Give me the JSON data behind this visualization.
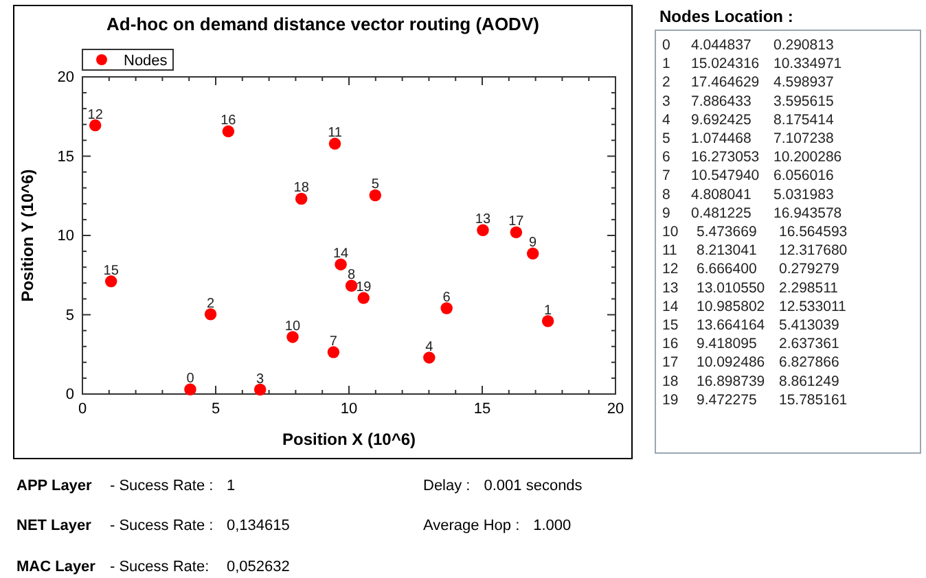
{
  "chart_data": {
    "type": "scatter",
    "title": "Ad-hoc on demand distance vector routing (AODV)",
    "xlabel": "Position X (10^6)",
    "ylabel": "Position Y (10^6)",
    "x": [
      4.044837,
      17.464629,
      4.808041,
      6.6664,
      13.01055,
      10.985802,
      13.664164,
      9.418095,
      10.092486,
      16.898739,
      7.886433,
      9.472275,
      0.481225,
      15.024316,
      9.692425,
      1.074468,
      5.473669,
      16.273053,
      8.213041,
      10.54794
    ],
    "series": [
      {
        "name": "Nodes",
        "color": "#ff0000",
        "values": [
          0.290813,
          4.598937,
          5.031983,
          0.279279,
          2.298511,
          12.533011,
          5.413039,
          2.637361,
          6.827866,
          8.861249,
          3.595615,
          15.785161,
          16.943578,
          10.334971,
          8.175414,
          7.107238,
          16.564593,
          10.200286,
          12.31768,
          6.056016
        ]
      }
    ],
    "xlim": [
      0,
      20
    ],
    "ylim": [
      0,
      20
    ],
    "xticks": [
      0,
      {
        "value": 1,
        "label": null
      },
      {
        "value": 2,
        "label": null
      },
      {
        "value": 3,
        "label": null
      },
      {
        "value": 4,
        "label": null
      },
      5,
      {
        "value": 6,
        "label": null
      },
      {
        "value": 7,
        "label": null
      },
      {
        "value": 8,
        "label": null
      },
      {
        "value": 9,
        "label": null
      },
      10,
      {
        "value": 11,
        "label": null
      },
      {
        "value": 12,
        "label": null
      },
      {
        "value": 13,
        "label": null
      },
      {
        "value": 14,
        "label": null
      },
      15,
      {
        "value": 16,
        "label": null
      },
      {
        "value": 17,
        "label": null
      },
      {
        "value": 18,
        "label": null
      },
      {
        "value": 19,
        "label": null
      },
      20
    ],
    "yticks": [
      0,
      {
        "value": 1,
        "label": null
      },
      {
        "value": 2,
        "label": null
      },
      {
        "value": 3,
        "label": null
      },
      {
        "value": 4,
        "label": null
      },
      5,
      {
        "value": 6,
        "label": null
      },
      {
        "value": 7,
        "label": null
      },
      {
        "value": 8,
        "label": null
      },
      {
        "value": 9,
        "label": null
      },
      10,
      {
        "value": 11,
        "label": null
      },
      {
        "value": 12,
        "label": null
      },
      {
        "value": 13,
        "label": null
      },
      {
        "value": 14,
        "label": null
      },
      15,
      {
        "value": 16,
        "label": null
      },
      {
        "value": 17,
        "label": null
      },
      {
        "value": 18,
        "label": null
      },
      {
        "value": 19,
        "label": null
      },
      20
    ],
    "grid": false,
    "legend": "top left",
    "marker": "circle",
    "annotations": [
      {
        "text": "0",
        "x": 4.044837,
        "y": 0.290813
      },
      {
        "text": "1",
        "x": 17.464629,
        "y": 4.598937
      },
      {
        "text": "2",
        "x": 4.808041,
        "y": 5.031983
      },
      {
        "text": "3",
        "x": 6.6664,
        "y": 0.279279
      },
      {
        "text": "4",
        "x": 13.01055,
        "y": 2.298511
      },
      {
        "text": "5",
        "x": 10.985802,
        "y": 12.533011
      },
      {
        "text": "6",
        "x": 13.664164,
        "y": 5.413039
      },
      {
        "text": "7",
        "x": 9.418095,
        "y": 2.637361
      },
      {
        "text": "8",
        "x": 10.092486,
        "y": 6.827866
      },
      {
        "text": "9",
        "x": 16.898739,
        "y": 8.861249
      },
      {
        "text": "10",
        "x": 7.886433,
        "y": 3.595615
      },
      {
        "text": "11",
        "x": 9.472275,
        "y": 15.785161
      },
      {
        "text": "12",
        "x": 0.481225,
        "y": 16.943578
      },
      {
        "text": "13",
        "x": 15.024316,
        "y": 10.334971
      },
      {
        "text": "14",
        "x": 9.692425,
        "y": 8.175414
      },
      {
        "text": "15",
        "x": 1.074468,
        "y": 7.107238
      },
      {
        "text": "16",
        "x": 5.473669,
        "y": 16.564593
      },
      {
        "text": "17",
        "x": 16.273053,
        "y": 10.200286
      },
      {
        "text": "18",
        "x": 8.213041,
        "y": 12.31768
      },
      {
        "text": "19",
        "x": 10.54794,
        "y": 6.056016
      },
      "Nodes Location :",
      "0\t4.044837\t0.290813",
      "1\t15.024316\t10.334971",
      "2\t17.464629\t4.598937",
      "3\t7.886433\t3.595615",
      "4\t9.692425\t8.175414",
      "5\t1.074468\t7.107238",
      "6\t16.273053\t10.200286",
      "7\t10.547940\t6.056016",
      "8\t4.808041\t5.031983",
      "9\t0.481225\t16.943578",
      "10\t5.473669\t16.564593",
      "11\t8.213041\t12.317680",
      "12\t6.666400\t0.279279",
      "13\t13.010550\t2.298511",
      "14\t10.985802\t12.533011",
      "15\t13.664164\t5.413039",
      "16\t9.418095\t2.637361",
      "17\t10.092486\t6.827866",
      "18\t16.898739\t8.861249",
      "19\t9.472275\t15.785161",
      "APP Layer\t- Sucess Rate :\t1",
      "Delay :\t0.001 seconds",
      "NET Layer\t- Sucess Rate :\t0,134615",
      "Average Hop :\t1.000",
      "MAC Layer\t- Sucess Rate:\t0,052632"
    ]
  }
}
